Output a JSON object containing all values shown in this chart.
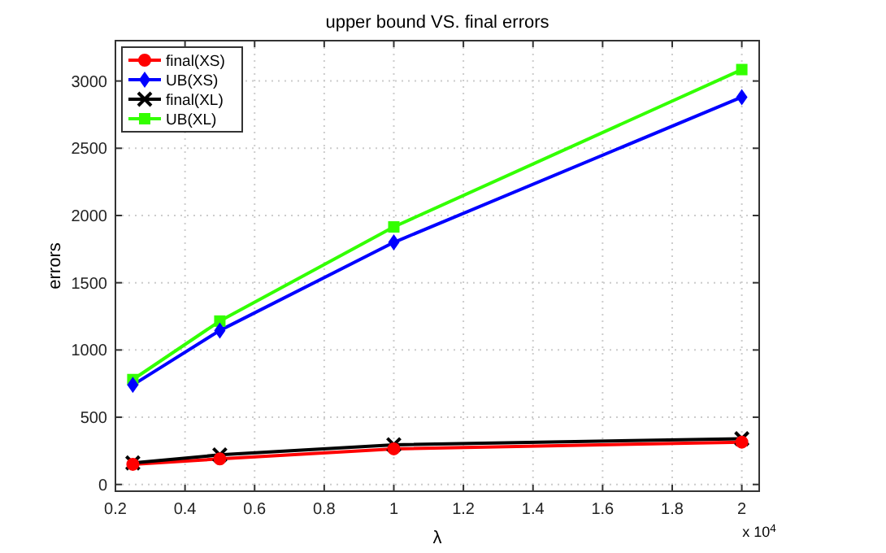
{
  "chart_data": {
    "type": "line",
    "title": "upper bound VS. final errors",
    "xlabel": "λ",
    "ylabel": "errors",
    "annotations": [
      "x 10$^{4}$"
    ],
    "x": [
      0.25,
      0.5,
      1,
      2
    ],
    "xlim": [
      0.2,
      2.05
    ],
    "xticks": [
      0.2,
      0.4,
      0.6,
      0.8,
      1,
      1.2,
      1.4,
      1.6,
      1.8,
      2
    ],
    "ylim": [
      -50,
      3300
    ],
    "yticks": [
      0,
      500,
      1000,
      1500,
      2000,
      2500,
      3000
    ],
    "grid": true,
    "legend": "top left",
    "series": [
      {
        "name": "final(XS)",
        "color": "#ff0000",
        "marker": "circle",
        "values": [
          150,
          190,
          265,
          315
        ]
      },
      {
        "name": "UB(XS)",
        "color": "#0000ff",
        "marker": "diamond",
        "values": [
          740,
          1145,
          1800,
          2880
        ]
      },
      {
        "name": "final(XL)",
        "color": "#000000",
        "marker": "cross",
        "values": [
          160,
          220,
          295,
          340
        ]
      },
      {
        "name": "UB(XL)",
        "color": "#33ff00",
        "marker": "square",
        "values": [
          780,
          1215,
          1915,
          3085
        ]
      }
    ]
  }
}
